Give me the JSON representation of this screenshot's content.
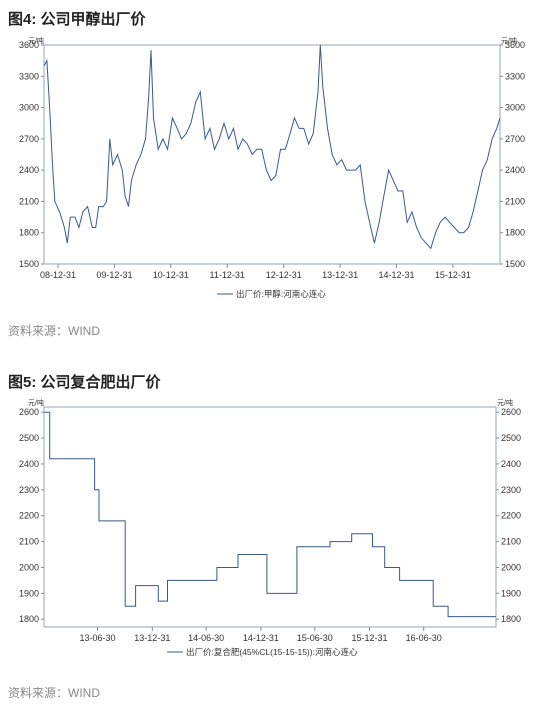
{
  "figure4": {
    "title": "图4: 公司甲醇出厂价",
    "source": "资料来源：WIND"
  },
  "figure5": {
    "title": "图5: 公司复合肥出厂价",
    "source": "资料来源：WIND"
  },
  "colors": {
    "line": "#3b5a86",
    "axis": "#7f8fa6"
  },
  "chart_data": [
    {
      "type": "line",
      "unit": "元/吨",
      "ylim": [
        1500,
        3600
      ],
      "yticks": [
        1500,
        1800,
        2100,
        2400,
        2700,
        3000,
        3300,
        3600
      ],
      "xlim": [
        "2008-10-01",
        "2016-10-31"
      ],
      "xtick_dates": [
        "2008-12-31",
        "2009-12-31",
        "2010-12-31",
        "2011-12-31",
        "2012-12-31",
        "2013-12-31",
        "2014-12-31",
        "2015-12-31"
      ],
      "xtick_labels": [
        "08-12-31",
        "09-12-31",
        "10-12-31",
        "11-12-31",
        "12-12-31",
        "13-12-31",
        "14-12-31",
        "15-12-31"
      ],
      "legend": "出厂价:甲醇:河南心连心",
      "series": [
        {
          "name": "出厂价:甲醇:河南心连心",
          "points": [
            [
              "2008-10-01",
              3400
            ],
            [
              "2008-10-20",
              3450
            ],
            [
              "2008-11-10",
              2900
            ],
            [
              "2008-11-25",
              2450
            ],
            [
              "2008-12-10",
              2100
            ],
            [
              "2009-01-10",
              2000
            ],
            [
              "2009-02-10",
              1850
            ],
            [
              "2009-03-01",
              1700
            ],
            [
              "2009-03-20",
              1950
            ],
            [
              "2009-04-20",
              1950
            ],
            [
              "2009-05-15",
              1850
            ],
            [
              "2009-06-10",
              2000
            ],
            [
              "2009-07-10",
              2050
            ],
            [
              "2009-08-10",
              1850
            ],
            [
              "2009-09-01",
              1850
            ],
            [
              "2009-09-20",
              2050
            ],
            [
              "2009-10-20",
              2050
            ],
            [
              "2009-11-10",
              2100
            ],
            [
              "2009-12-01",
              2700
            ],
            [
              "2009-12-20",
              2450
            ],
            [
              "2010-01-20",
              2550
            ],
            [
              "2010-02-20",
              2400
            ],
            [
              "2010-03-10",
              2150
            ],
            [
              "2010-04-01",
              2050
            ],
            [
              "2010-04-20",
              2300
            ],
            [
              "2010-05-20",
              2450
            ],
            [
              "2010-06-20",
              2550
            ],
            [
              "2010-07-20",
              2700
            ],
            [
              "2010-08-10",
              3100
            ],
            [
              "2010-08-25",
              3550
            ],
            [
              "2010-09-10",
              2900
            ],
            [
              "2010-10-10",
              2600
            ],
            [
              "2010-11-10",
              2700
            ],
            [
              "2010-12-10",
              2600
            ],
            [
              "2011-01-10",
              2900
            ],
            [
              "2011-02-10",
              2800
            ],
            [
              "2011-03-10",
              2700
            ],
            [
              "2011-04-10",
              2750
            ],
            [
              "2011-05-10",
              2850
            ],
            [
              "2011-06-10",
              3050
            ],
            [
              "2011-07-10",
              3150
            ],
            [
              "2011-08-10",
              2700
            ],
            [
              "2011-09-10",
              2800
            ],
            [
              "2011-10-10",
              2600
            ],
            [
              "2011-11-10",
              2700
            ],
            [
              "2011-12-10",
              2850
            ],
            [
              "2012-01-10",
              2700
            ],
            [
              "2012-02-10",
              2800
            ],
            [
              "2012-03-10",
              2600
            ],
            [
              "2012-04-10",
              2700
            ],
            [
              "2012-05-10",
              2650
            ],
            [
              "2012-06-10",
              2550
            ],
            [
              "2012-07-10",
              2600
            ],
            [
              "2012-08-10",
              2600
            ],
            [
              "2012-09-10",
              2400
            ],
            [
              "2012-10-10",
              2300
            ],
            [
              "2012-11-10",
              2350
            ],
            [
              "2012-12-10",
              2600
            ],
            [
              "2013-01-10",
              2600
            ],
            [
              "2013-02-10",
              2750
            ],
            [
              "2013-03-10",
              2900
            ],
            [
              "2013-04-10",
              2800
            ],
            [
              "2013-05-10",
              2800
            ],
            [
              "2013-06-10",
              2650
            ],
            [
              "2013-07-10",
              2750
            ],
            [
              "2013-08-10",
              3150
            ],
            [
              "2013-08-25",
              3600
            ],
            [
              "2013-09-10",
              3200
            ],
            [
              "2013-10-10",
              2800
            ],
            [
              "2013-11-10",
              2550
            ],
            [
              "2013-12-10",
              2450
            ],
            [
              "2014-01-10",
              2500
            ],
            [
              "2014-02-10",
              2400
            ],
            [
              "2014-03-10",
              2400
            ],
            [
              "2014-04-10",
              2400
            ],
            [
              "2014-05-10",
              2450
            ],
            [
              "2014-06-10",
              2100
            ],
            [
              "2014-07-10",
              1900
            ],
            [
              "2014-08-10",
              1700
            ],
            [
              "2014-09-10",
              1900
            ],
            [
              "2014-10-10",
              2150
            ],
            [
              "2014-11-10",
              2400
            ],
            [
              "2014-12-10",
              2300
            ],
            [
              "2015-01-10",
              2200
            ],
            [
              "2015-02-10",
              2200
            ],
            [
              "2015-03-10",
              1900
            ],
            [
              "2015-04-10",
              2000
            ],
            [
              "2015-05-10",
              1850
            ],
            [
              "2015-06-10",
              1750
            ],
            [
              "2015-07-10",
              1700
            ],
            [
              "2015-08-10",
              1650
            ],
            [
              "2015-09-10",
              1800
            ],
            [
              "2015-10-10",
              1900
            ],
            [
              "2015-11-10",
              1950
            ],
            [
              "2015-12-10",
              1900
            ],
            [
              "2016-01-10",
              1850
            ],
            [
              "2016-02-10",
              1800
            ],
            [
              "2016-03-10",
              1800
            ],
            [
              "2016-04-10",
              1850
            ],
            [
              "2016-05-10",
              2000
            ],
            [
              "2016-06-10",
              2200
            ],
            [
              "2016-07-10",
              2400
            ],
            [
              "2016-08-10",
              2500
            ],
            [
              "2016-09-10",
              2700
            ],
            [
              "2016-10-10",
              2800
            ],
            [
              "2016-10-31",
              2900
            ]
          ]
        }
      ]
    },
    {
      "type": "line",
      "unit": "元/吨",
      "ylim": [
        1770,
        2620
      ],
      "yticks": [
        1800,
        1900,
        2000,
        2100,
        2200,
        2300,
        2400,
        2500,
        2600
      ],
      "xlim": [
        "2013-01-01",
        "2017-02-28"
      ],
      "xtick_dates": [
        "2013-06-30",
        "2013-12-31",
        "2014-06-30",
        "2014-12-31",
        "2015-06-30",
        "2015-12-31",
        "2016-06-30"
      ],
      "xtick_labels": [
        "13-06-30",
        "13-12-31",
        "14-06-30",
        "14-12-31",
        "15-06-30",
        "15-12-31",
        "16-06-30"
      ],
      "legend": "出厂价:复合肥(45%CL(15-15-15)):河南心连心",
      "series": [
        {
          "name": "出厂价:复合肥(45%CL(15-15-15)):河南心连心",
          "steps": [
            [
              "2013-01-01",
              2600
            ],
            [
              "2013-01-20",
              2420
            ],
            [
              "2013-06-20",
              2300
            ],
            [
              "2013-07-05",
              2180
            ],
            [
              "2013-10-01",
              1850
            ],
            [
              "2013-11-05",
              1930
            ],
            [
              "2014-01-20",
              1870
            ],
            [
              "2014-02-20",
              1950
            ],
            [
              "2014-08-05",
              2000
            ],
            [
              "2014-10-15",
              2050
            ],
            [
              "2015-01-20",
              1900
            ],
            [
              "2015-05-01",
              2080
            ],
            [
              "2015-08-20",
              2100
            ],
            [
              "2015-11-01",
              2130
            ],
            [
              "2016-01-10",
              2080
            ],
            [
              "2016-02-20",
              2000
            ],
            [
              "2016-04-10",
              1950
            ],
            [
              "2016-08-01",
              1850
            ],
            [
              "2016-09-20",
              1810
            ],
            [
              "2017-02-28",
              1810
            ]
          ]
        }
      ]
    }
  ]
}
